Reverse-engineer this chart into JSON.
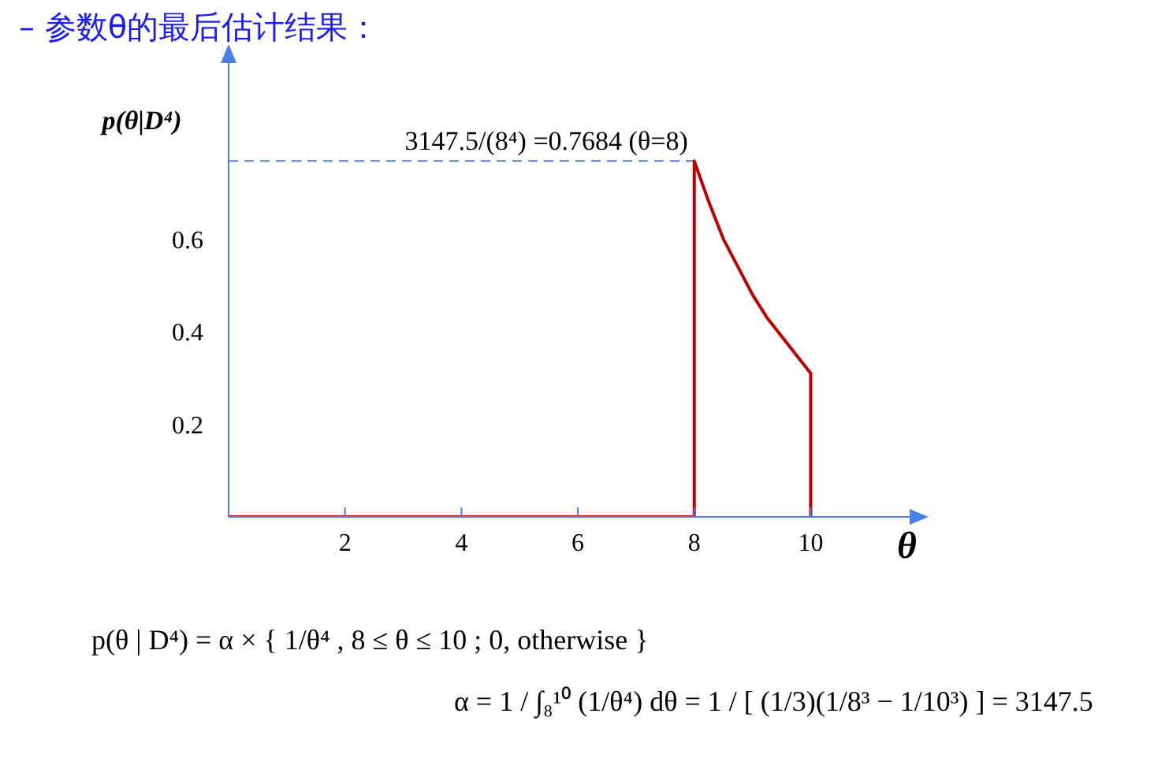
{
  "chart_data": {
    "type": "line",
    "title": "– 参数θ的最后估计结果：",
    "xlabel": "θ",
    "ylabel": "p(θ|D⁴)",
    "x": [
      0,
      8,
      8,
      8.25,
      8.5,
      8.75,
      9,
      9.25,
      9.5,
      9.75,
      10,
      10
    ],
    "series": [
      {
        "color": "#c00000",
        "values": [
          0,
          0,
          0.7684,
          0.68,
          0.6,
          0.54,
          0.48,
          0.43,
          0.39,
          0.35,
          0.31,
          0
        ]
      }
    ],
    "xlim": [
      0,
      11.7
    ],
    "ylim": [
      0,
      0.98
    ],
    "xticks": [
      2,
      4,
      6,
      8,
      10
    ],
    "yticks": [
      0.2,
      0.4,
      0.6
    ],
    "line_style": "solid",
    "ref_lines": [
      {
        "axis": "y",
        "value": 0.7684,
        "label": "3147.5/(8⁴) =0.7684   (θ=8)",
        "color": "#4a7fe8",
        "line_style": "dashed"
      }
    ],
    "annotations": [
      "p(θ | D⁴) = α × { 1/θ⁴ ,   8 ≤ θ ≤ 10 ;   0,   otherwise }",
      "α = 1 / ∫₈¹⁰ (1/θ⁴) dθ = 1 / [ (1/3)(1/8³ − 1/10³) ] = 3147.5"
    ]
  }
}
